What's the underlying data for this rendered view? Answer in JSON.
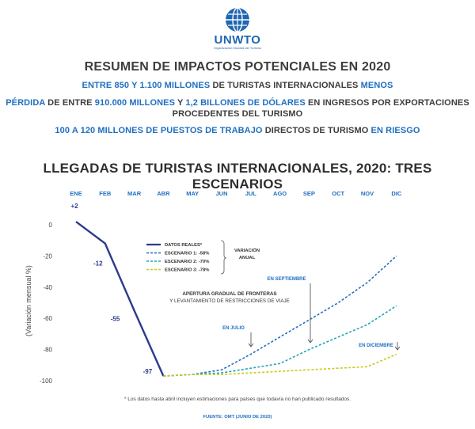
{
  "logo": {
    "name": "UNWTO",
    "subtitle": "Organización Mundial del Turismo"
  },
  "summary": {
    "title": "RESUMEN DE IMPACTOS POTENCIALES EN 2020",
    "line1": {
      "a": "ENTRE 850 Y 1.100 MILLONES",
      "b": " DE TURISTAS INTERNACIONALES ",
      "c": "MENOS"
    },
    "line2": {
      "a": "PÉRDIDA",
      "b": " DE ENTRE ",
      "c": "910.000 MILLONES",
      "d": " Y ",
      "e": "1,2 BILLONES DE DÓLARES",
      "f": " EN INGRESOS POR EXPORTACIONES"
    },
    "line3": "PROCEDENTES DEL TURISMO",
    "line4": {
      "a": "100 A 120 MILLONES DE PUESTOS DE TRABAJO",
      "b": " DIRECTOS DE TURISMO ",
      "c": "EN RIESGO"
    }
  },
  "chart_title": "LLEGADAS DE TURISTAS INTERNACIONALES, 2020: TRES ESCENARIOS",
  "footnote": "* Los datos hasta abril incluyen estimaciones para países que todavía no han publicado resultados.",
  "source": "FUENTE: OMT (JUNIO DE 2020)",
  "colors": {
    "actual": "#2d3a8c",
    "s1": "#1f6fc1",
    "s2": "#1fa7b8",
    "s3": "#c9c91e",
    "accent": "#1f6fc1",
    "axis": "#444444"
  },
  "chart_data": {
    "type": "line",
    "categories": [
      "ENE",
      "FEB",
      "MAR",
      "ABR",
      "MAY",
      "JUN",
      "JUL",
      "AGO",
      "SEP",
      "OCT",
      "NOV",
      "DIC"
    ],
    "ylabel": "(Variación mensual %)",
    "ylim": [
      -100,
      0
    ],
    "yticks": [
      0,
      -20,
      -40,
      -60,
      -80,
      -100
    ],
    "grid": false,
    "series": [
      {
        "name": "DATOS REALES*",
        "style": "solid",
        "values": [
          2,
          -12,
          -55,
          -97,
          null,
          null,
          null,
          null,
          null,
          null,
          null,
          null
        ]
      },
      {
        "name": "ESCENARIO 1: -58%",
        "style": "dashed",
        "values": [
          null,
          null,
          null,
          -97,
          -96,
          -93,
          -83,
          -72,
          -61,
          -50,
          -37,
          -20
        ]
      },
      {
        "name": "ESCENARIO 2: -70%",
        "style": "dashed",
        "values": [
          null,
          null,
          null,
          -97,
          -96,
          -95,
          -92,
          -89,
          -80,
          -72,
          -64,
          -52
        ]
      },
      {
        "name": "ESCENARIO 3: -78%",
        "style": "dashed",
        "values": [
          null,
          null,
          null,
          -97,
          -96,
          -96,
          -95,
          -94,
          -93,
          -92,
          -91,
          -83
        ]
      }
    ],
    "data_labels": [
      {
        "series": 0,
        "index": 0,
        "text": "+2"
      },
      {
        "series": 0,
        "index": 1,
        "text": "-12"
      },
      {
        "series": 0,
        "index": 2,
        "text": "-55"
      },
      {
        "series": 0,
        "index": 3,
        "text": "-97"
      }
    ],
    "legend_title": "VARIACIÓN ANUAL",
    "annotations": {
      "gradual_1": "APERTURA GRADUAL DE FRONTERAS",
      "gradual_2": "Y LEVANTAMIENTO DE RESTRICCIONES DE VIAJE",
      "julio": "EN JULIO",
      "septiembre": "EN SEPTIEMBRE",
      "diciembre": "EN DICIEMBRE"
    }
  }
}
